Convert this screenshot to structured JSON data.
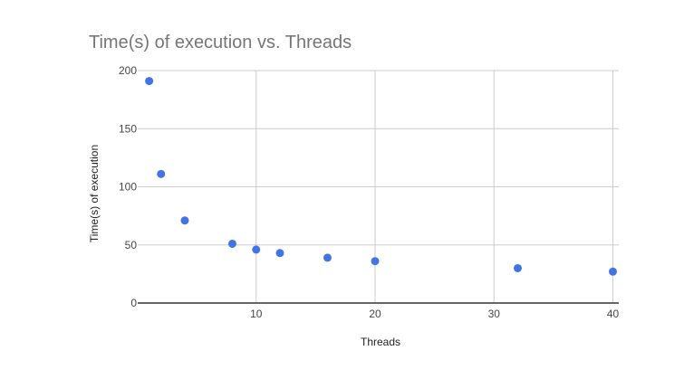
{
  "chart_data": {
    "type": "scatter",
    "title": "Time(s) of execution vs. Threads",
    "xlabel": "Threads",
    "ylabel": "Time(s) of execution",
    "xlim": [
      0,
      40
    ],
    "ylim": [
      0,
      200
    ],
    "x_ticks": [
      10,
      20,
      30,
      40
    ],
    "y_ticks": [
      0,
      50,
      100,
      150,
      200
    ],
    "grid": true,
    "legend": "none",
    "series": [
      {
        "color": "#4374e6",
        "points": [
          {
            "x": 1,
            "y": 191
          },
          {
            "x": 2,
            "y": 111
          },
          {
            "x": 4,
            "y": 71
          },
          {
            "x": 8,
            "y": 51
          },
          {
            "x": 10,
            "y": 46
          },
          {
            "x": 12,
            "y": 43
          },
          {
            "x": 16,
            "y": 39
          },
          {
            "x": 20,
            "y": 36
          },
          {
            "x": 32,
            "y": 30
          },
          {
            "x": 40,
            "y": 27
          }
        ]
      }
    ]
  }
}
